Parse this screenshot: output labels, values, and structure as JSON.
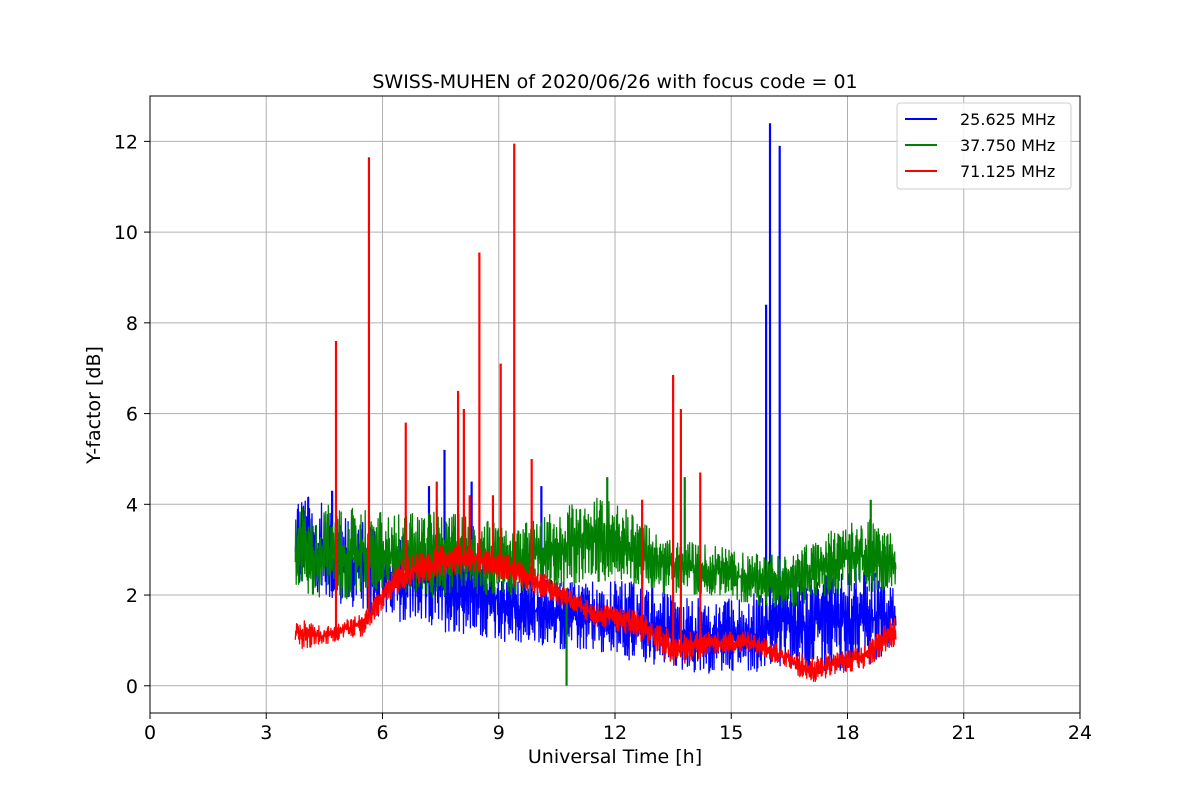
{
  "chart_data": {
    "type": "line",
    "title": "SWISS-MUHEN of 2020/06/26 with focus code = 01",
    "xlabel": "Universal Time [h]",
    "ylabel": "Y-factor [dB]",
    "xlim": [
      0,
      24
    ],
    "ylim": [
      -0.6,
      13
    ],
    "xticks": [
      0,
      3,
      6,
      9,
      12,
      15,
      18,
      21,
      24
    ],
    "yticks": [
      0,
      2,
      4,
      6,
      8,
      10,
      12
    ],
    "grid": true,
    "legend_position": "top-right",
    "series": [
      {
        "name": "25.625 MHz",
        "color": "#0000ff",
        "envelope": [
          {
            "x": 3.75,
            "low": 2.2,
            "high": 4.3
          },
          {
            "x": 4.5,
            "low": 1.9,
            "high": 4.0
          },
          {
            "x": 5.5,
            "low": 1.6,
            "high": 3.6
          },
          {
            "x": 6.5,
            "low": 1.4,
            "high": 3.3
          },
          {
            "x": 7.5,
            "low": 1.2,
            "high": 3.3
          },
          {
            "x": 8.5,
            "low": 1.1,
            "high": 3.0
          },
          {
            "x": 9.5,
            "low": 0.9,
            "high": 2.5
          },
          {
            "x": 10.5,
            "low": 0.8,
            "high": 2.3
          },
          {
            "x": 11.5,
            "low": 0.7,
            "high": 2.3
          },
          {
            "x": 12.5,
            "low": 0.5,
            "high": 2.3
          },
          {
            "x": 13.5,
            "low": 0.4,
            "high": 2.0
          },
          {
            "x": 14.5,
            "low": 0.2,
            "high": 1.9
          },
          {
            "x": 15.5,
            "low": 0.3,
            "high": 2.0
          },
          {
            "x": 16.5,
            "low": 0.4,
            "high": 2.4
          },
          {
            "x": 17.5,
            "low": 0.2,
            "high": 2.6
          },
          {
            "x": 18.5,
            "low": 0.4,
            "high": 2.6
          },
          {
            "x": 19.25,
            "low": 0.9,
            "high": 2.2
          }
        ],
        "peaks": [
          {
            "x": 4.7,
            "y": 4.3
          },
          {
            "x": 7.2,
            "y": 4.4
          },
          {
            "x": 7.6,
            "y": 5.2
          },
          {
            "x": 8.3,
            "y": 4.5
          },
          {
            "x": 10.1,
            "y": 4.4
          },
          {
            "x": 15.9,
            "y": 8.4
          },
          {
            "x": 16.0,
            "y": 12.4
          },
          {
            "x": 16.25,
            "y": 11.9
          }
        ]
      },
      {
        "name": "37.750 MHz",
        "color": "#008000",
        "envelope": [
          {
            "x": 3.75,
            "low": 2.1,
            "high": 3.9
          },
          {
            "x": 4.5,
            "low": 1.8,
            "high": 4.0
          },
          {
            "x": 5.5,
            "low": 2.0,
            "high": 3.9
          },
          {
            "x": 6.5,
            "low": 2.0,
            "high": 3.8
          },
          {
            "x": 7.5,
            "low": 1.9,
            "high": 3.9
          },
          {
            "x": 8.5,
            "low": 2.0,
            "high": 3.7
          },
          {
            "x": 9.5,
            "low": 2.0,
            "high": 3.5
          },
          {
            "x": 10.5,
            "low": 2.1,
            "high": 3.9
          },
          {
            "x": 11.5,
            "low": 2.3,
            "high": 4.2
          },
          {
            "x": 12.5,
            "low": 2.2,
            "high": 3.8
          },
          {
            "x": 13.5,
            "low": 2.0,
            "high": 3.2
          },
          {
            "x": 14.5,
            "low": 2.0,
            "high": 3.1
          },
          {
            "x": 15.5,
            "low": 1.8,
            "high": 2.9
          },
          {
            "x": 16.5,
            "low": 1.7,
            "high": 2.9
          },
          {
            "x": 17.5,
            "low": 2.0,
            "high": 3.4
          },
          {
            "x": 18.5,
            "low": 2.0,
            "high": 3.7
          },
          {
            "x": 19.25,
            "low": 2.2,
            "high": 3.3
          }
        ],
        "peaks": [
          {
            "x": 10.75,
            "y": 0.0
          },
          {
            "x": 11.8,
            "y": 4.6
          },
          {
            "x": 13.8,
            "y": 4.6
          },
          {
            "x": 18.6,
            "y": 4.1
          }
        ]
      },
      {
        "name": "71.125 MHz",
        "color": "#ff0000",
        "envelope": [
          {
            "x": 3.75,
            "low": 0.8,
            "high": 1.5
          },
          {
            "x": 4.5,
            "low": 0.9,
            "high": 1.3
          },
          {
            "x": 5.5,
            "low": 1.1,
            "high": 1.6
          },
          {
            "x": 6.0,
            "low": 1.7,
            "high": 2.2
          },
          {
            "x": 6.5,
            "low": 2.1,
            "high": 2.8
          },
          {
            "x": 7.5,
            "low": 2.4,
            "high": 3.1
          },
          {
            "x": 8.5,
            "low": 2.5,
            "high": 3.1
          },
          {
            "x": 9.5,
            "low": 2.2,
            "high": 2.8
          },
          {
            "x": 10.5,
            "low": 1.8,
            "high": 2.3
          },
          {
            "x": 11.5,
            "low": 1.3,
            "high": 1.8
          },
          {
            "x": 12.5,
            "low": 1.1,
            "high": 1.7
          },
          {
            "x": 13.5,
            "low": 0.4,
            "high": 1.2
          },
          {
            "x": 14.5,
            "low": 0.7,
            "high": 1.2
          },
          {
            "x": 15.5,
            "low": 0.7,
            "high": 1.2
          },
          {
            "x": 16.5,
            "low": 0.4,
            "high": 0.8
          },
          {
            "x": 17.0,
            "low": 0.0,
            "high": 0.7
          },
          {
            "x": 17.5,
            "low": 0.2,
            "high": 0.7
          },
          {
            "x": 18.5,
            "low": 0.4,
            "high": 0.9
          },
          {
            "x": 19.25,
            "low": 0.9,
            "high": 1.6
          }
        ],
        "peaks": [
          {
            "x": 4.8,
            "y": 7.6
          },
          {
            "x": 5.65,
            "y": 11.65
          },
          {
            "x": 6.6,
            "y": 5.8
          },
          {
            "x": 7.4,
            "y": 4.5
          },
          {
            "x": 7.95,
            "y": 6.5
          },
          {
            "x": 8.1,
            "y": 6.1
          },
          {
            "x": 8.25,
            "y": 4.2
          },
          {
            "x": 8.5,
            "y": 9.55
          },
          {
            "x": 8.85,
            "y": 4.2
          },
          {
            "x": 9.05,
            "y": 7.1
          },
          {
            "x": 9.4,
            "y": 11.95
          },
          {
            "x": 9.85,
            "y": 5.0
          },
          {
            "x": 12.7,
            "y": 4.1
          },
          {
            "x": 13.5,
            "y": 6.85
          },
          {
            "x": 13.7,
            "y": 6.1
          },
          {
            "x": 14.2,
            "y": 4.7
          }
        ]
      }
    ]
  }
}
